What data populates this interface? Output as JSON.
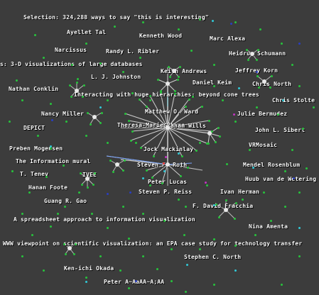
{
  "graph": {
    "labels": [
      "Selection: 324,288 ways to say \"this is interesting\"",
      "Ayellet Tal",
      "Kenneth Wood",
      "Marc Alexa",
      "Narcissus",
      "Randy L. Ribler",
      "Heidrun Schumann",
      "s: 3-D visualizations of large databases",
      "Keith Andrews",
      "Jeffrey Korn",
      "L. J. Johnston",
      "Daniel Keim",
      "Chris North",
      "Nathan Conklin",
      "Interacting with huge hierarchies: beyond cone trees",
      "Chris Stolte",
      "Nancy Miller",
      "Matthew O. Ward",
      "Julie Bermudez",
      "Theresa-Marie Rhyne",
      "Graham Wills",
      "DEPICT",
      "John L. Sibert",
      "Preben Mogensen",
      "VRMosaic",
      "Jock Mackinlay",
      "The Information mural",
      "Mendel Rosenblum",
      "Steven F. Roth",
      "T. Tenev",
      "IVEE",
      "Huub van de Wetering",
      "Peter Lucas",
      "Hanan Foote",
      "Steven P. Reiss",
      "Ivan Herman",
      "Guang R. Gao",
      "F. David Fracchia",
      "A spreadsheet approach to information visualization",
      "Nina Amenta",
      "WWW viewpoint on scientific visualization: an EPA case study for technology transfer",
      "Stephen C. North",
      "Ken-ichi Okada",
      "Peter A~AaAA~A;AA"
    ]
  }
}
